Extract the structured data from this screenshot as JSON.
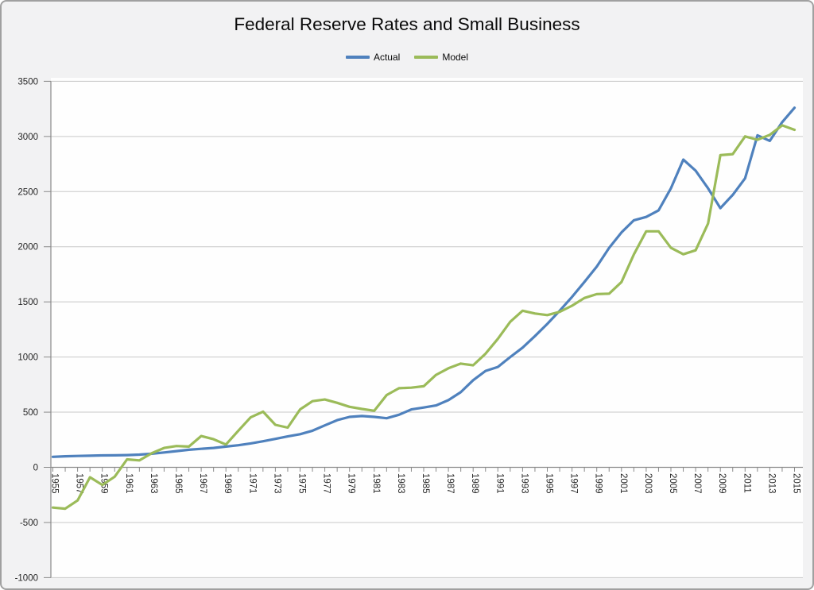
{
  "chart_data": {
    "type": "line",
    "title": "Federal Reserve Rates and Small Business",
    "xlabel": "",
    "ylabel": "",
    "ylim": [
      -1000,
      3500
    ],
    "ytick_step": 500,
    "x_tick_label_interval": 2,
    "grid": "horizontal",
    "legend_position": "top",
    "years": [
      1955,
      1956,
      1957,
      1958,
      1959,
      1960,
      1961,
      1962,
      1963,
      1964,
      1965,
      1966,
      1967,
      1968,
      1969,
      1970,
      1971,
      1972,
      1973,
      1974,
      1975,
      1976,
      1977,
      1978,
      1979,
      1980,
      1981,
      1982,
      1983,
      1984,
      1985,
      1986,
      1987,
      1988,
      1989,
      1990,
      1991,
      1992,
      1993,
      1994,
      1995,
      1996,
      1997,
      1998,
      1999,
      2000,
      2001,
      2002,
      2003,
      2004,
      2005,
      2006,
      2007,
      2008,
      2009,
      2010,
      2011,
      2012,
      2013,
      2014,
      2015
    ],
    "series": [
      {
        "name": "Actual",
        "color": "#4F81BD",
        "values": [
          95,
          100,
          103,
          105,
          108,
          109,
          111,
          115,
          123,
          135,
          147,
          159,
          168,
          176,
          188,
          200,
          217,
          236,
          258,
          280,
          300,
          332,
          380,
          428,
          457,
          465,
          457,
          445,
          477,
          525,
          542,
          561,
          609,
          681,
          790,
          874,
          910,
          1000,
          1085,
          1190,
          1300,
          1420,
          1545,
          1680,
          1820,
          1990,
          2130,
          2240,
          2270,
          2330,
          2530,
          2790,
          2690,
          2530,
          2350,
          2470,
          2620,
          3010,
          2960,
          3130,
          3260
        ]
      },
      {
        "name": "Model",
        "color": "#9BBB59",
        "values": [
          -365,
          -375,
          -300,
          -90,
          -160,
          -85,
          72,
          63,
          128,
          176,
          193,
          188,
          284,
          255,
          207,
          332,
          453,
          505,
          385,
          360,
          525,
          600,
          615,
          585,
          549,
          529,
          513,
          655,
          717,
          722,
          735,
          838,
          898,
          940,
          925,
          1030,
          1165,
          1320,
          1420,
          1395,
          1380,
          1410,
          1465,
          1535,
          1570,
          1575,
          1680,
          1930,
          2140,
          2140,
          1990,
          1932,
          1968,
          2210,
          2830,
          2840,
          3000,
          2970,
          3015,
          3100,
          3060
        ]
      }
    ],
    "colors": {
      "plot_background": "#fefefe",
      "frame_background": "#f2f2f3",
      "frame_border": "#a0a0a0",
      "gridline": "#c8c8c8",
      "axis": "#8a8a8a",
      "tick_label": "#262626"
    }
  }
}
